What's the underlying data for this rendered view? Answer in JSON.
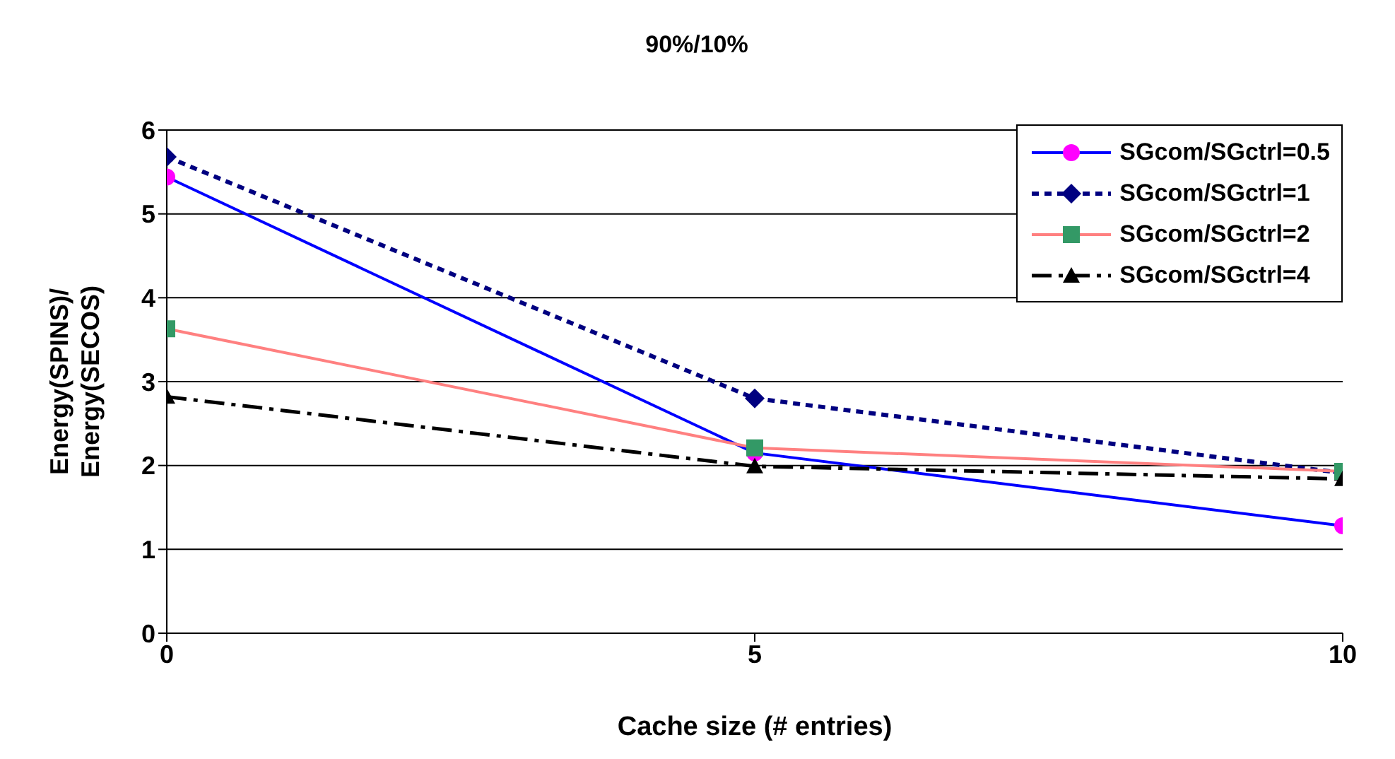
{
  "chart_data": {
    "type": "line",
    "title": "90%/10%",
    "xlabel": "Cache size (# entries)",
    "ylabel": "Energy(SPINS)/ Energy(SECOS)",
    "x": [
      0,
      5,
      10
    ],
    "xlim": [
      0,
      10
    ],
    "xticks": [
      0,
      5,
      10
    ],
    "ylim": [
      0,
      6
    ],
    "yticks": [
      0,
      1,
      2,
      3,
      4,
      5,
      6
    ],
    "grid": "y",
    "legend": "top right",
    "series": [
      {
        "name": "SGcom/SGctrl=0.5",
        "color": "#0000ff",
        "values": [
          5.44,
          2.15,
          1.28
        ],
        "marker": "circle",
        "colors": [
          "#ff00ff",
          "#ff00ff",
          "#ff00ff"
        ],
        "line_style": "solid"
      },
      {
        "name": "SGcom/SGctrl=1",
        "color": "#000080",
        "values": [
          5.68,
          2.8,
          1.91
        ],
        "marker": "diamond",
        "line_style": "dotted"
      },
      {
        "name": "SGcom/SGctrl=2",
        "color": "#ff8080",
        "values": [
          3.63,
          2.21,
          1.93
        ],
        "marker": "square",
        "colors": [
          "#339966",
          "#339966",
          "#339966"
        ],
        "line_style": "solid"
      },
      {
        "name": "SGcom/SGctrl=4",
        "color": "#000000",
        "values": [
          2.82,
          1.99,
          1.84
        ],
        "marker": "triangle",
        "line_style": "dashed"
      }
    ]
  }
}
